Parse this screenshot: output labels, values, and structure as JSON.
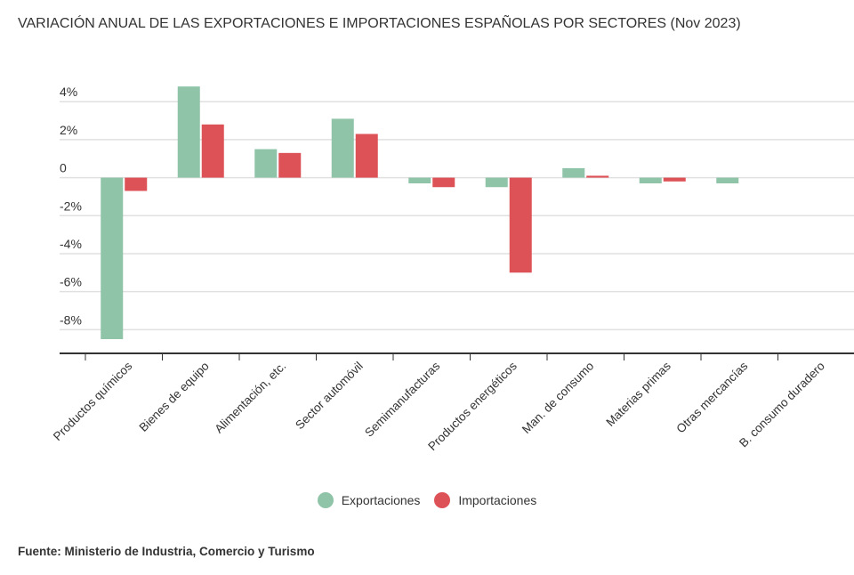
{
  "chart_data": {
    "type": "bar",
    "title": "VARIACIÓN ANUAL DE LAS EXPORTACIONES E IMPORTACIONES ESPAÑOLAS POR SECTORES (Nov 2023)",
    "categories": [
      "Productos químicos",
      "Bienes de equipo",
      "Alimentación, etc.",
      "Sector automóvil",
      "Semimanufacturas",
      "Productos energéticos",
      "Man. de consumo",
      "Materias primas",
      "Otras mercancías",
      "B. consumo duradero"
    ],
    "series": [
      {
        "name": "Exportaciones",
        "color": "#8fc4a8",
        "values": [
          -8.5,
          4.8,
          1.5,
          3.1,
          -0.3,
          -0.5,
          0.5,
          -0.3,
          -0.3,
          null
        ]
      },
      {
        "name": "Importaciones",
        "color": "#dd5257",
        "values": [
          -0.7,
          2.8,
          1.3,
          2.3,
          -0.5,
          -5.0,
          0.1,
          -0.2,
          null,
          null
        ]
      }
    ],
    "yticks": [
      4,
      2,
      0,
      -2,
      -4,
      -6,
      -8
    ],
    "ytick_labels": [
      "4%",
      "2%",
      "0",
      "-2%",
      "-4%",
      "-6%",
      "-8%"
    ],
    "ylim": [
      -9.25,
      4.9
    ],
    "xlabel": "",
    "ylabel": "",
    "grid": true,
    "legend": "bottom-center"
  },
  "source": {
    "label": "Fuente:",
    "value": "Ministerio de Industria, Comercio y Turismo"
  }
}
